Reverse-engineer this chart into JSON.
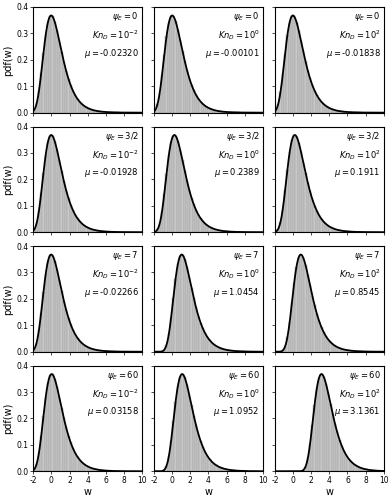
{
  "grid_rows": 4,
  "grid_cols": 3,
  "psi_E_values": [
    "0",
    "0",
    "0",
    "3/2",
    "3/2",
    "3/2",
    "7",
    "7",
    "7",
    "60",
    "60",
    "60"
  ],
  "KnD_exponents": [
    -2,
    0,
    2,
    -2,
    0,
    2,
    -2,
    0,
    2,
    -2,
    0,
    2
  ],
  "mu_values": [
    -0.0232,
    -0.00101,
    -0.01838,
    -0.01928,
    0.2389,
    0.1911,
    -0.02266,
    1.0454,
    0.8545,
    0.03158,
    1.0952,
    3.1361
  ],
  "mu_strings": [
    "-0.02320",
    "-0.00101",
    "-0.01838",
    "-0.01928",
    "0.2389",
    "0.1911",
    "-0.02266",
    "1.0454",
    "0.8545",
    "0.03158",
    "1.0952",
    "3.1361"
  ],
  "xlim": [
    -2,
    10
  ],
  "ylim": [
    0,
    0.4
  ],
  "yticks": [
    0.0,
    0.1,
    0.2,
    0.3,
    0.4
  ],
  "xticks": [
    -2,
    0,
    2,
    4,
    6,
    8,
    10
  ],
  "bar_color": "#c8c8c8",
  "bar_edge_color": "#999999",
  "line_color": "black",
  "bar_bins": 48,
  "annotation_fontsize": 6.0,
  "tick_fontsize": 5.5,
  "label_fontsize": 7.0,
  "figsize": [
    3.92,
    5.0
  ],
  "dpi": 100
}
